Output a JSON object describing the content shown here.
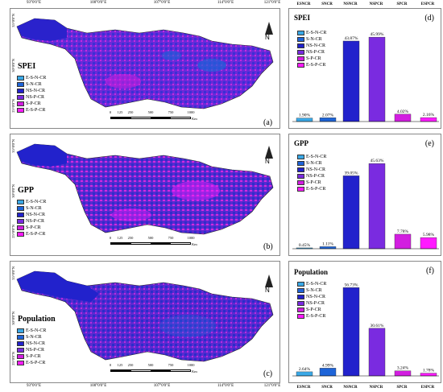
{
  "longitudes": [
    "93°0'0\"E",
    "100°0'0\"E",
    "107°0'0\"E",
    "114°0'0\"E",
    "121°0'0\"E"
  ],
  "latitudes": [
    "35°0'0\"N",
    "30°0'0\"N",
    "25°0'0\"N"
  ],
  "scale": {
    "ticks": [
      "0",
      "125",
      "250",
      "500",
      "750",
      "1000"
    ],
    "unit": "Km"
  },
  "north_label": "N",
  "legend_items": [
    {
      "label": "E-S-N-CR",
      "color": "#3aa8e6"
    },
    {
      "label": "S-N-CR",
      "color": "#1e64d8"
    },
    {
      "label": "NS-N-CR",
      "color": "#2222cc"
    },
    {
      "label": "NS-P-CR",
      "color": "#7a2be0"
    },
    {
      "label": "S-P-CR",
      "color": "#d21ee0"
    },
    {
      "label": "E-S-P-CR",
      "color": "#ff1aff"
    }
  ],
  "maps": [
    {
      "title": "SPEI",
      "label": "(a)"
    },
    {
      "title": "GPP",
      "label": "(b)"
    },
    {
      "title": "Population",
      "label": "(c)"
    }
  ],
  "chart_data": [
    {
      "type": "bar",
      "title": "SPEI",
      "label": "(d)",
      "categories": [
        "ESNCR",
        "SNCR",
        "NSNCR",
        "NSPCR",
        "SPCR",
        "ESPCR"
      ],
      "values": [
        1.9,
        2.07,
        43.87,
        45.99,
        4.02,
        2.16
      ],
      "value_labels": [
        "1.90%",
        "2.07%",
        "43.87%",
        "45.99%",
        "4.02%",
        "2.16%"
      ],
      "ylim": [
        0,
        50
      ]
    },
    {
      "type": "bar",
      "title": "GPP",
      "label": "(e)",
      "categories": [
        "ESNCR",
        "SNCR",
        "NSNCR",
        "NSPCR",
        "SPCR",
        "ESPCR"
      ],
      "values": [
        0.45,
        1.11,
        39.05,
        45.63,
        7.78,
        5.98
      ],
      "value_labels": [
        "0.45%",
        "1.11%",
        "39.05%",
        "45.63%",
        "7.78%",
        "5.98%"
      ],
      "ylim": [
        0,
        50
      ]
    },
    {
      "type": "bar",
      "title": "Population",
      "label": "(f)",
      "categories": [
        "ESNCR",
        "SNCR",
        "NSNCR",
        "NSPCR",
        "SPCR",
        "ESPCR"
      ],
      "values": [
        2.64,
        4.99,
        56.73,
        30.61,
        3.24,
        1.78
      ],
      "value_labels": [
        "2.64%",
        "4.99%",
        "56.73%",
        "30.61%",
        "3.24%",
        "1.78%"
      ],
      "ylim": [
        0,
        60
      ]
    }
  ]
}
